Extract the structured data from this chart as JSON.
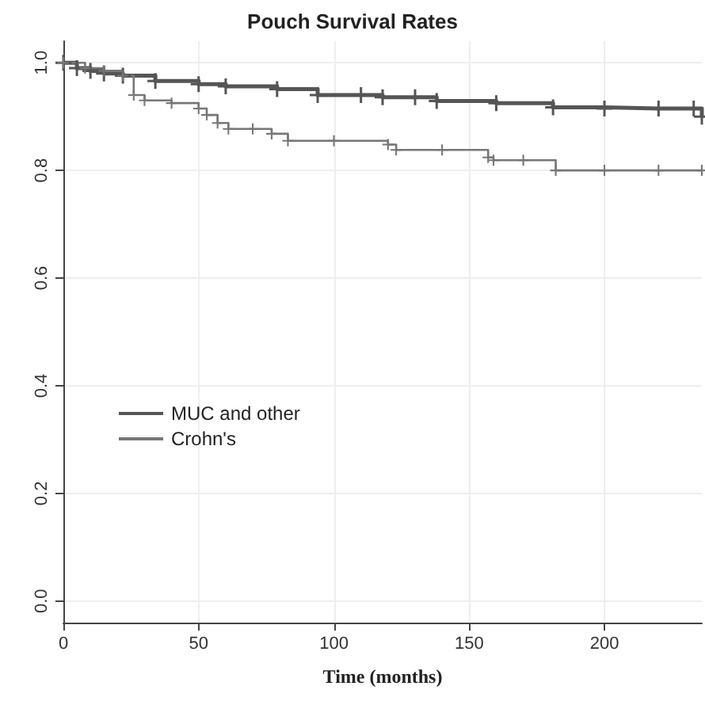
{
  "chart_data": {
    "type": "step",
    "title": "Pouch Survival Rates",
    "xlabel": "Time (months)",
    "xlim": [
      0,
      236
    ],
    "xticks": [
      0,
      50,
      100,
      150,
      200
    ],
    "ylim": [
      -0.04,
      1.04
    ],
    "yticks": [
      {
        "value": 0,
        "label": "0.0"
      },
      0.2,
      0.4,
      0.6,
      0.8,
      {
        "value": 1,
        "label": "1.0"
      }
    ],
    "grid": true,
    "legend": "left",
    "marker": "cross",
    "line_style": "solid",
    "series": [
      {
        "name": "MUC and other",
        "color": "#555555",
        "x": [
          0,
          5,
          10,
          15,
          22,
          34,
          50,
          60,
          79,
          94,
          110,
          118,
          130,
          138,
          160,
          181,
          200,
          220,
          233,
          236
        ],
        "values": [
          1.0,
          0.99,
          0.985,
          0.98,
          0.976,
          0.966,
          0.96,
          0.956,
          0.951,
          0.94,
          0.94,
          0.936,
          0.936,
          0.929,
          0.925,
          0.917,
          0.915,
          0.915,
          0.915,
          0.9
        ]
      },
      {
        "name": "Crohn's",
        "color": "#777777",
        "x": [
          0,
          8,
          15,
          22,
          26,
          30,
          40,
          50,
          53,
          57,
          61,
          70,
          77,
          83,
          100,
          120,
          123,
          140,
          157,
          159,
          170,
          182,
          200,
          220,
          236
        ],
        "values": [
          1.0,
          0.99,
          0.985,
          0.976,
          0.94,
          0.93,
          0.925,
          0.915,
          0.903,
          0.888,
          0.877,
          0.877,
          0.868,
          0.855,
          0.855,
          0.848,
          0.838,
          0.838,
          0.824,
          0.819,
          0.819,
          0.8,
          0.8,
          0.8,
          0.8
        ]
      }
    ]
  }
}
